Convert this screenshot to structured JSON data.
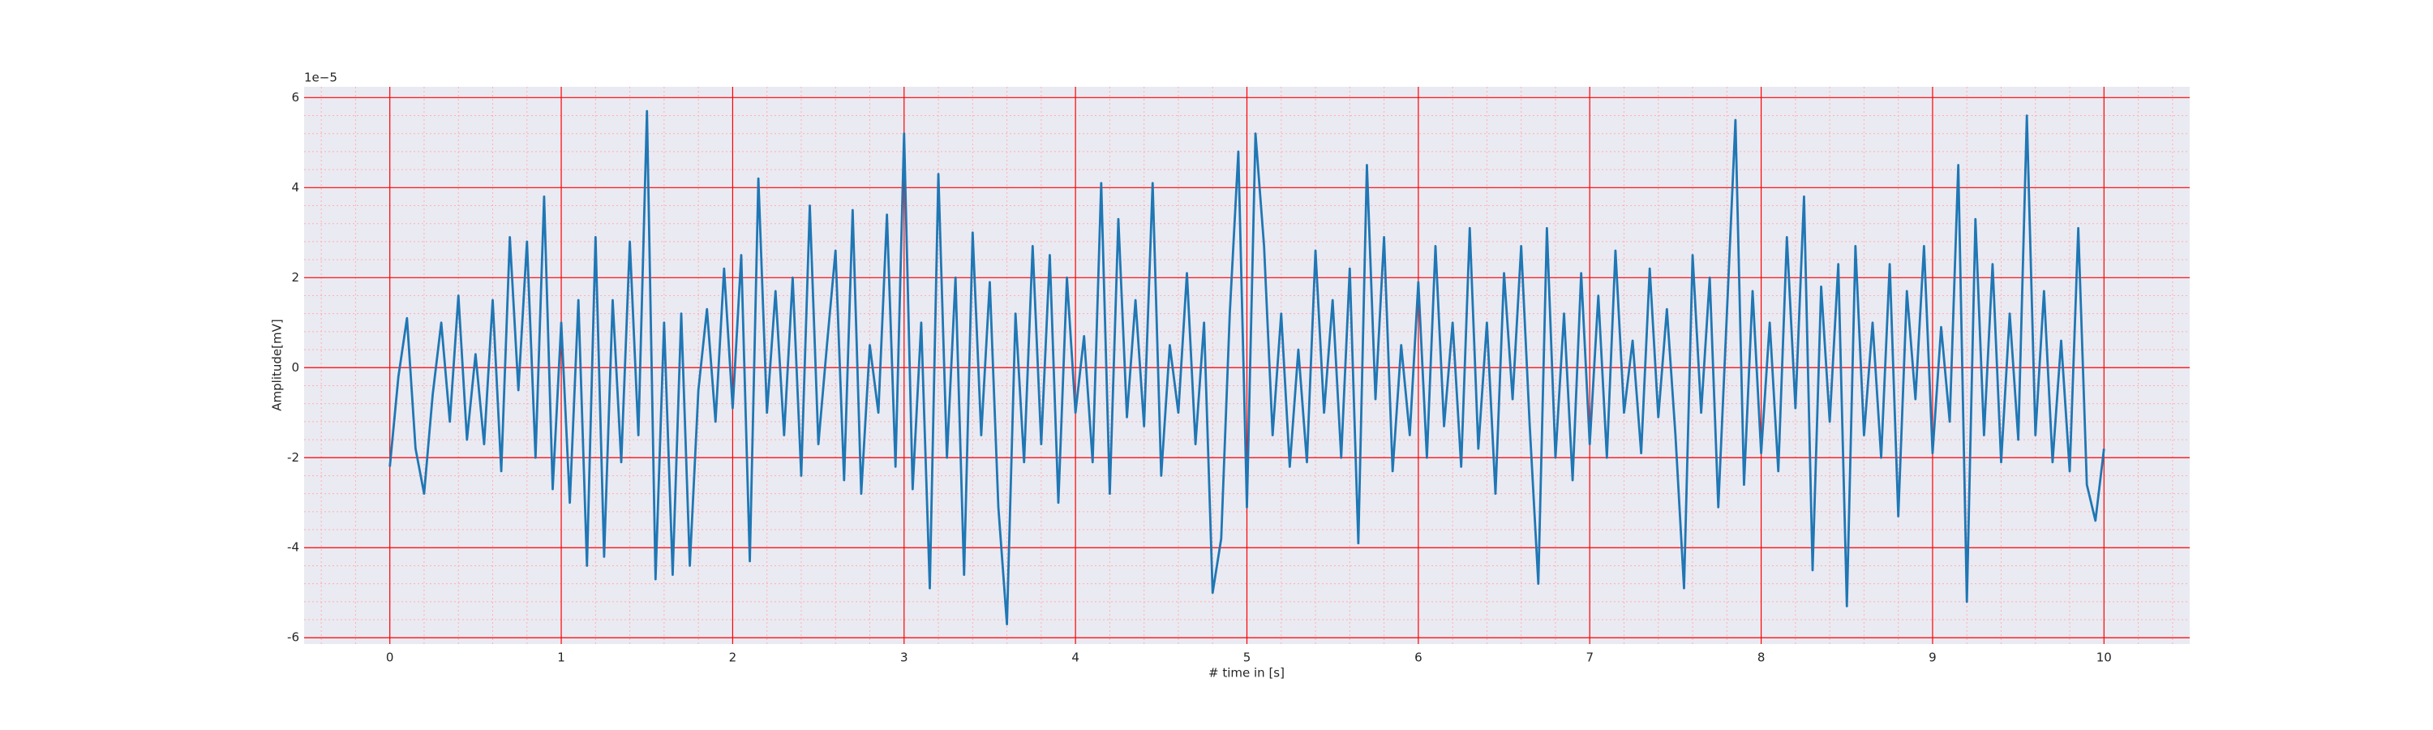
{
  "chart_data": {
    "type": "line",
    "x_label": "# time in [s]",
    "y_label": "Amplitude[mV]",
    "y_offset_text": "1e−5",
    "x": [
      0,
      0.05,
      0.1,
      0.15,
      0.2,
      0.25,
      0.3,
      0.35,
      0.4,
      0.45,
      0.5,
      0.55,
      0.6,
      0.65,
      0.7,
      0.75,
      0.8,
      0.85,
      0.9,
      0.95,
      1,
      1.05,
      1.1,
      1.15,
      1.2,
      1.25,
      1.3,
      1.35,
      1.4,
      1.45,
      1.5,
      1.55,
      1.6,
      1.65,
      1.7,
      1.75,
      1.8,
      1.85,
      1.9,
      1.95,
      2,
      2.05,
      2.1,
      2.15,
      2.2,
      2.25,
      2.3,
      2.35,
      2.4,
      2.45,
      2.5,
      2.55,
      2.6,
      2.65,
      2.7,
      2.75,
      2.8,
      2.85,
      2.9,
      2.95,
      3,
      3.05,
      3.1,
      3.15,
      3.2,
      3.25,
      3.3,
      3.35,
      3.4,
      3.45,
      3.5,
      3.55,
      3.6,
      3.65,
      3.7,
      3.75,
      3.8,
      3.85,
      3.9,
      3.95,
      4,
      4.05,
      4.1,
      4.15,
      4.2,
      4.25,
      4.3,
      4.35,
      4.4,
      4.45,
      4.5,
      4.55,
      4.6,
      4.65,
      4.7,
      4.75,
      4.8,
      4.85,
      4.9,
      4.95,
      5,
      5.05,
      5.1,
      5.15,
      5.2,
      5.25,
      5.3,
      5.35,
      5.4,
      5.45,
      5.5,
      5.55,
      5.6,
      5.65,
      5.7,
      5.75,
      5.8,
      5.85,
      5.9,
      5.95,
      6,
      6.05,
      6.1,
      6.15,
      6.2,
      6.25,
      6.3,
      6.35,
      6.4,
      6.45,
      6.5,
      6.55,
      6.6,
      6.65,
      6.7,
      6.75,
      6.8,
      6.85,
      6.9,
      6.95,
      7,
      7.05,
      7.1,
      7.15,
      7.2,
      7.25,
      7.3,
      7.35,
      7.4,
      7.45,
      7.5,
      7.55,
      7.6,
      7.65,
      7.7,
      7.75,
      7.8,
      7.85,
      7.9,
      7.95,
      8,
      8.05,
      8.1,
      8.15,
      8.2,
      8.25,
      8.3,
      8.35,
      8.4,
      8.45,
      8.5,
      8.55,
      8.6,
      8.65,
      8.7,
      8.75,
      8.8,
      8.85,
      8.9,
      8.95,
      9,
      9.05,
      9.1,
      9.15,
      9.2,
      9.25,
      9.3,
      9.35,
      9.4,
      9.45,
      9.5,
      9.55,
      9.6,
      9.65,
      9.7,
      9.75,
      9.8,
      9.85,
      9.9,
      9.95,
      10
    ],
    "series": [
      {
        "color": "#1f77b4",
        "values": [
          -2.2,
          -0.2,
          1.1,
          -1.8,
          -2.8,
          -0.6,
          1.0,
          -1.2,
          1.6,
          -1.6,
          0.3,
          -1.7,
          1.5,
          -2.3,
          2.9,
          -0.5,
          2.8,
          -2.0,
          3.8,
          -2.7,
          1.0,
          -3.0,
          1.5,
          -4.4,
          2.9,
          -4.2,
          1.5,
          -2.1,
          2.8,
          -1.5,
          5.7,
          -4.7,
          1.0,
          -4.6,
          1.2,
          -4.4,
          -0.5,
          1.3,
          -1.2,
          2.2,
          -0.9,
          2.5,
          -4.3,
          4.2,
          -1.0,
          1.7,
          -1.5,
          2.0,
          -2.4,
          3.6,
          -1.7,
          0.5,
          2.6,
          -2.5,
          3.5,
          -2.8,
          0.5,
          -1.0,
          3.4,
          -2.2,
          5.2,
          -2.7,
          1.0,
          -4.9,
          4.3,
          -2.0,
          2.0,
          -4.6,
          3.0,
          -1.5,
          1.9,
          -3.1,
          -5.7,
          1.2,
          -2.1,
          2.7,
          -1.7,
          2.5,
          -3.0,
          2.0,
          -1.0,
          0.7,
          -2.1,
          4.1,
          -2.8,
          3.3,
          -1.1,
          1.5,
          -1.3,
          4.1,
          -2.4,
          0.5,
          -1.0,
          2.1,
          -1.7,
          1.0,
          -5.0,
          -3.8,
          1.2,
          4.8,
          -3.1,
          5.2,
          2.7,
          -1.5,
          1.2,
          -2.2,
          0.4,
          -2.1,
          2.6,
          -1.0,
          1.5,
          -2.0,
          2.2,
          -3.9,
          4.5,
          -0.7,
          2.9,
          -2.3,
          0.5,
          -1.5,
          1.9,
          -2.0,
          2.7,
          -1.3,
          1.0,
          -2.2,
          3.1,
          -1.8,
          1.0,
          -2.8,
          2.1,
          -0.7,
          2.7,
          -1.3,
          -4.8,
          3.1,
          -2.0,
          1.2,
          -2.5,
          2.1,
          -1.7,
          1.6,
          -2.0,
          2.6,
          -1.0,
          0.6,
          -1.9,
          2.2,
          -1.1,
          1.3,
          -1.5,
          -4.9,
          2.5,
          -1.0,
          2.0,
          -3.1,
          1.2,
          5.5,
          -2.6,
          1.7,
          -1.9,
          1.0,
          -2.3,
          2.9,
          -0.9,
          3.8,
          -4.5,
          1.8,
          -1.2,
          2.3,
          -5.3,
          2.7,
          -1.5,
          1.0,
          -2.0,
          2.3,
          -3.3,
          1.7,
          -0.7,
          2.7,
          -1.9,
          0.9,
          -1.2,
          4.5,
          -5.2,
          3.3,
          -1.5,
          2.3,
          -2.1,
          1.2,
          -1.6,
          5.6,
          -1.5,
          1.7,
          -2.1,
          0.6,
          -2.3,
          3.1,
          -2.6,
          -3.4,
          -1.8
        ]
      }
    ],
    "xlim": [
      -0.5,
      10.5
    ],
    "ylim": [
      -6.14,
      6.24
    ],
    "xticks": [
      0,
      1,
      2,
      3,
      4,
      5,
      6,
      7,
      8,
      9,
      10
    ],
    "yticks": [
      -6,
      -4,
      -2,
      0,
      2,
      4,
      6
    ],
    "x_minor_ticks": [
      -0.4,
      -0.2,
      0.2,
      0.4,
      0.6,
      0.8,
      1.2,
      1.4,
      1.6,
      1.8,
      2.2,
      2.4,
      2.6,
      2.8,
      3.2,
      3.4,
      3.6,
      3.8,
      4.2,
      4.4,
      4.6,
      4.8,
      5.2,
      5.4,
      5.6,
      5.8,
      6.2,
      6.4,
      6.6,
      6.8,
      7.2,
      7.4,
      7.6,
      7.8,
      8.2,
      8.4,
      8.6,
      8.8,
      9.2,
      9.4,
      9.6,
      9.8,
      10.2,
      10.4
    ],
    "y_minor_ticks": [
      -5.6,
      -5.2,
      -4.8,
      -4.4,
      -3.6,
      -3.2,
      -2.8,
      -2.4,
      -1.6,
      -1.2,
      -0.8,
      -0.4,
      0.4,
      0.8,
      1.2,
      1.6,
      2.4,
      2.8,
      3.2,
      3.6,
      4.4,
      4.8,
      5.2,
      5.6
    ],
    "grid": true,
    "grid_color": "#ff0000",
    "minor_grid_color": "#ffb0b0",
    "background": "#eaeaf2"
  }
}
